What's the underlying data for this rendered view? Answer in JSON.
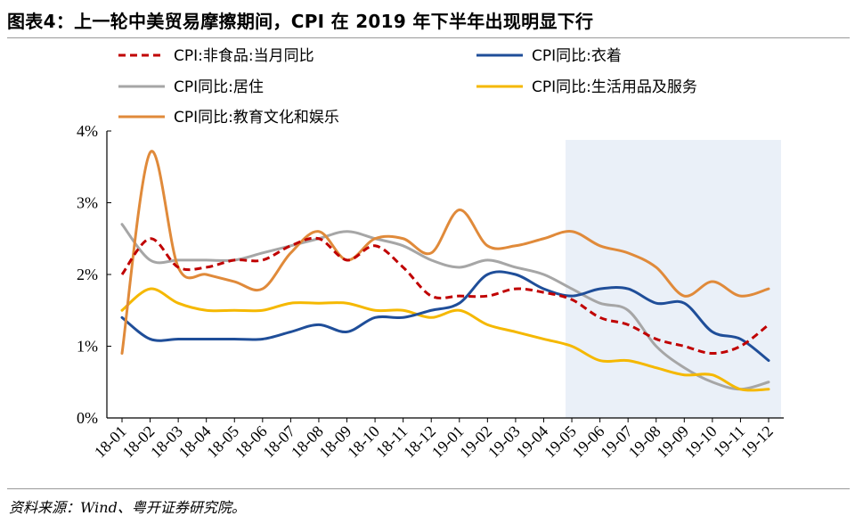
{
  "title": "图表4：上一轮中美贸易摩擦期间，CPI 在 2019 年下半年出现明显下行",
  "source": "资料来源：Wind、粤开证券研究院。",
  "chart_data": {
    "type": "line",
    "x": [
      "18-01",
      "18-02",
      "18-03",
      "18-04",
      "18-05",
      "18-06",
      "18-07",
      "18-08",
      "18-09",
      "18-10",
      "18-11",
      "18-12",
      "19-01",
      "19-02",
      "19-03",
      "19-04",
      "19-05",
      "19-06",
      "19-07",
      "19-08",
      "19-09",
      "19-10",
      "19-11",
      "19-12"
    ],
    "ylim": [
      0,
      4
    ],
    "yticks": [
      "0%",
      "1%",
      "2%",
      "3%",
      "4%"
    ],
    "shaded_region": [
      "19-05",
      "19-12"
    ],
    "shade_color": "#eaf0f8",
    "series": [
      {
        "name": "CPI:非食品:当月同比",
        "color": "#c00000",
        "dash": true,
        "values": [
          2.0,
          2.5,
          2.1,
          2.1,
          2.2,
          2.2,
          2.4,
          2.5,
          2.2,
          2.4,
          2.1,
          1.7,
          1.7,
          1.7,
          1.8,
          1.75,
          1.65,
          1.4,
          1.3,
          1.1,
          1.0,
          0.9,
          1.0,
          1.3
        ]
      },
      {
        "name": "CPI同比:衣着",
        "color": "#1f4e99",
        "dash": false,
        "values": [
          1.4,
          1.1,
          1.1,
          1.1,
          1.1,
          1.1,
          1.2,
          1.3,
          1.2,
          1.4,
          1.4,
          1.5,
          1.6,
          2.0,
          2.0,
          1.8,
          1.7,
          1.8,
          1.8,
          1.6,
          1.6,
          1.2,
          1.1,
          0.8
        ]
      },
      {
        "name": "CPI同比:居住",
        "color": "#a6a6a6",
        "dash": false,
        "values": [
          2.7,
          2.2,
          2.2,
          2.2,
          2.2,
          2.3,
          2.4,
          2.5,
          2.6,
          2.5,
          2.4,
          2.2,
          2.1,
          2.2,
          2.1,
          2.0,
          1.8,
          1.6,
          1.5,
          1.0,
          0.7,
          0.5,
          0.4,
          0.5
        ]
      },
      {
        "name": "CPI同比:生活用品及服务",
        "color": "#f5b800",
        "dash": false,
        "values": [
          1.5,
          1.8,
          1.6,
          1.5,
          1.5,
          1.5,
          1.6,
          1.6,
          1.6,
          1.5,
          1.5,
          1.4,
          1.5,
          1.3,
          1.2,
          1.1,
          1.0,
          0.8,
          0.8,
          0.7,
          0.6,
          0.6,
          0.4,
          0.4
        ]
      },
      {
        "name": "CPI同比:教育文化和娱乐",
        "color": "#e08a3a",
        "dash": false,
        "values": [
          0.9,
          3.7,
          2.1,
          2.0,
          1.9,
          1.8,
          2.3,
          2.6,
          2.2,
          2.5,
          2.5,
          2.3,
          2.9,
          2.4,
          2.4,
          2.5,
          2.6,
          2.4,
          2.3,
          2.1,
          1.7,
          1.9,
          1.7,
          1.8
        ]
      }
    ]
  }
}
